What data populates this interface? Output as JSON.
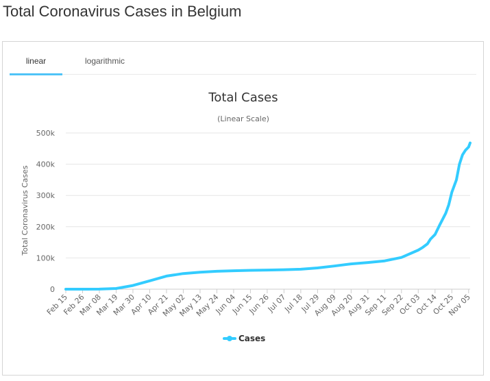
{
  "page": {
    "title": "Total Coronavirus Cases in Belgium"
  },
  "tabs": [
    {
      "label": "linear",
      "active": true
    },
    {
      "label": "logarithmic",
      "active": false
    }
  ],
  "colors": {
    "series": "#33ccff",
    "tab_underline": "#4fc3f7",
    "grid": "#e6e6e6"
  },
  "chart_data": {
    "type": "line",
    "title": "Total Cases",
    "subtitle": "(Linear Scale)",
    "ylabel": "Total Coronavirus Cases",
    "xlabel": "",
    "ylim": [
      0,
      500000
    ],
    "grid": true,
    "legend_position": "bottom-center",
    "y_ticks": [
      {
        "value": 0,
        "label": "0"
      },
      {
        "value": 100000,
        "label": "100k"
      },
      {
        "value": 200000,
        "label": "200k"
      },
      {
        "value": 300000,
        "label": "300k"
      },
      {
        "value": 400000,
        "label": "400k"
      },
      {
        "value": 500000,
        "label": "500k"
      }
    ],
    "x_ticks": [
      "Feb 15",
      "Feb 26",
      "Mar 08",
      "Mar 19",
      "Mar 30",
      "Apr 10",
      "Apr 21",
      "May 02",
      "May 13",
      "May 24",
      "Jun 04",
      "Jun 15",
      "Jun 26",
      "Jul 07",
      "Jul 18",
      "Jul 29",
      "Aug 09",
      "Aug 20",
      "Aug 31",
      "Sep 11",
      "Sep 22",
      "Oct 03",
      "Oct 14",
      "Oct 25",
      "Nov 05"
    ],
    "series": [
      {
        "name": "Cases",
        "points": [
          [
            "Feb 15",
            0
          ],
          [
            "Feb 26",
            1
          ],
          [
            "Mar 08",
            169
          ],
          [
            "Mar 19",
            2257
          ],
          [
            "Mar 30",
            11899
          ],
          [
            "Apr 10",
            26667
          ],
          [
            "Apr 21",
            41889
          ],
          [
            "May 02",
            49906
          ],
          [
            "May 13",
            54288
          ],
          [
            "May 24",
            57342
          ],
          [
            "Jun 04",
            58907
          ],
          [
            "Jun 15",
            60348
          ],
          [
            "Jun 26",
            61106
          ],
          [
            "Jul 07",
            62210
          ],
          [
            "Jul 18",
            63893
          ],
          [
            "Jul 29",
            68006
          ],
          [
            "Aug 09",
            74152
          ],
          [
            "Aug 20",
            80894
          ],
          [
            "Aug 31",
            85236
          ],
          [
            "Sep 11",
            90568
          ],
          [
            "Sep 22",
            101469
          ],
          [
            "Oct 03",
            125000
          ],
          [
            "Oct 06",
            134000
          ],
          [
            "Oct 09",
            145000
          ],
          [
            "Oct 11",
            160000
          ],
          [
            "Oct 14",
            175000
          ],
          [
            "Oct 17",
            205000
          ],
          [
            "Oct 21",
            243000
          ],
          [
            "Oct 23",
            270000
          ],
          [
            "Oct 25",
            310000
          ],
          [
            "Oct 28",
            350000
          ],
          [
            "Oct 30",
            400000
          ],
          [
            "Nov 01",
            430000
          ],
          [
            "Nov 03",
            445000
          ],
          [
            "Nov 05",
            455000
          ],
          [
            "Nov 06",
            468000
          ]
        ]
      }
    ]
  }
}
